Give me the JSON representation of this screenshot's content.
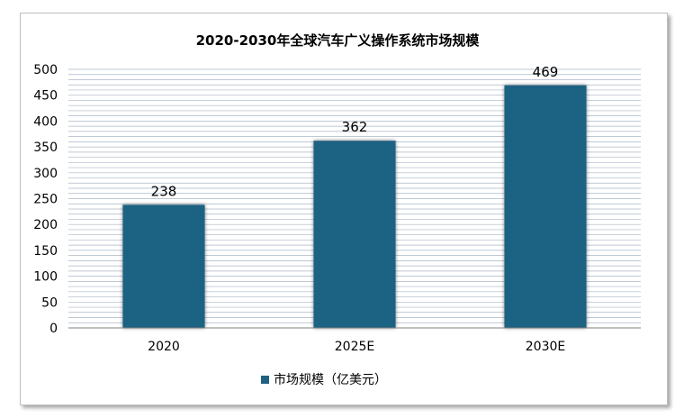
{
  "chart_data": {
    "type": "bar",
    "title": "2020-2030年全球汽车广义操作系统市场规模",
    "categories": [
      "2020",
      "2025E",
      "2030E"
    ],
    "series": [
      {
        "name": "市场规模（亿美元）",
        "values": [
          238,
          362,
          469
        ]
      }
    ],
    "data_labels": [
      "238",
      "362",
      "469"
    ],
    "y_ticks": [
      "0",
      "50",
      "100",
      "150",
      "200",
      "250",
      "300",
      "350",
      "400",
      "450",
      "500"
    ],
    "ylim": [
      0,
      500
    ],
    "xlabel": "",
    "ylabel": "",
    "grid": true,
    "legend_position": "bottom",
    "colors": {
      "bar": "#1f6282",
      "grid": "#a9b7c6",
      "text": "#000000"
    }
  }
}
